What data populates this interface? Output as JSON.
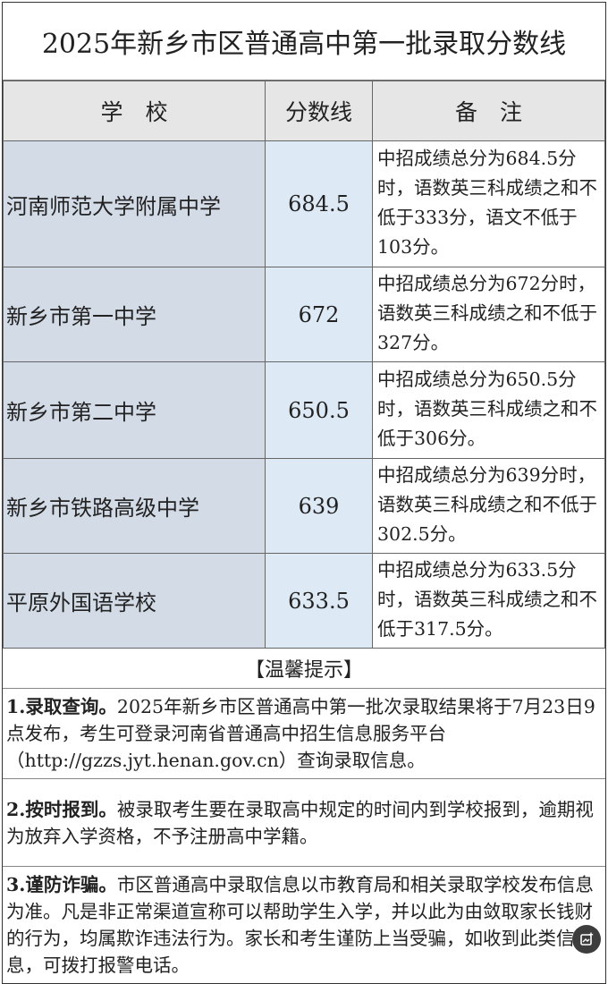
{
  "title": "2025年新乡市区普通高中第一批录取分数线",
  "table": {
    "headers": [
      "学　校",
      "分数线",
      "备　注"
    ],
    "rows": [
      {
        "school": "河南师范大学附属中学",
        "score": "684.5",
        "remark": "中招成绩总分为684.5分时，语数英三科成绩之和不低于333分，语文不低于103分。"
      },
      {
        "school": "新乡市第一中学",
        "score": "672",
        "remark": "中招成绩总分为672分时，语数英三科成绩之和不低于327分。"
      },
      {
        "school": "新乡市第二中学",
        "score": "650.5",
        "remark": "中招成绩总分为650.5分时，语数英三科成绩之和不低于306分。"
      },
      {
        "school": "新乡市铁路高级中学",
        "score": "639",
        "remark": "中招成绩总分为639分时，语数英三科成绩之和不低于302.5分。"
      },
      {
        "school": "平原外国语学校",
        "score": "633.5",
        "remark": "中招成绩总分为633.5分时，语数英三科成绩之和不低于317.5分。"
      }
    ]
  },
  "tips": {
    "heading": "【温馨提示】",
    "items": [
      {
        "label": "1.录取查询。",
        "text": "2025年新乡市区普通高中第一批次录取结果将于7月23日9点发布，考生可登录河南省普通高中招生信息服务平台（http://gzzs.jyt.henan.gov.cn）查询录取信息。"
      },
      {
        "label": "2.按时报到。",
        "text": "被录取考生要在录取高中规定的时间内到学校报到，逾期视为放弃入学资格，不予注册高中学籍。"
      },
      {
        "label": "3.谨防诈骗。",
        "text": "市区普通高中录取信息以市教育局和相关录取学校发布信息为准。凡是非正常渠道宣称可以帮助学生入学，并以此为由敛取家长钱财的行为，均属欺诈违法行为。家长和考生谨防上当受骗，如收到此类信息，可拨打报警电话。"
      }
    ]
  },
  "colors": {
    "school_bg": "#d3dbe6",
    "score_bg": "#dde9f5",
    "header_bg": "#e6e6e6"
  },
  "icons": {
    "floating_button": "edit-image-icon"
  }
}
